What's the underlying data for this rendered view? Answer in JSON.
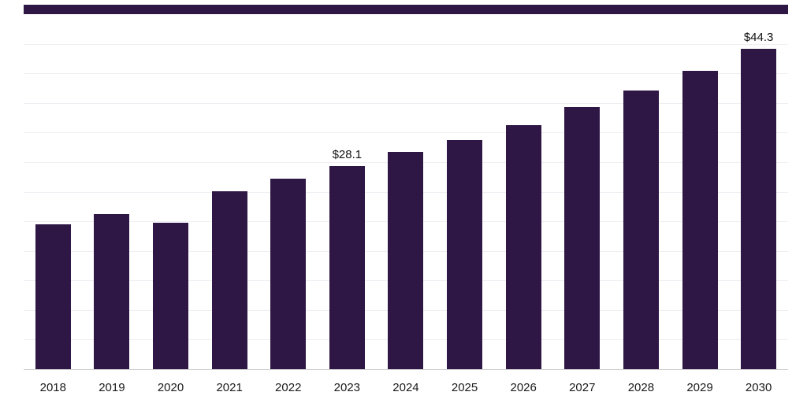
{
  "chart_data": {
    "type": "bar",
    "title": "",
    "xlabel": "",
    "ylabel": "",
    "categories": [
      "2018",
      "2019",
      "2020",
      "2021",
      "2022",
      "2023",
      "2024",
      "2025",
      "2026",
      "2027",
      "2028",
      "2029",
      "2030"
    ],
    "values": [
      20.0,
      21.5,
      20.2,
      24.6,
      26.3,
      28.1,
      30.0,
      31.7,
      33.8,
      36.2,
      38.5,
      41.3,
      44.3
    ],
    "annotations": [
      {
        "category": "2023",
        "text": "$28.1"
      },
      {
        "category": "2030",
        "text": "$44.3"
      }
    ],
    "currency_prefix": "$",
    "bar_color": "#2e1745",
    "axis_label_color": "#1a1a1a",
    "gridline_color": "#f0eef3",
    "axis_line_color": "#cfcfcf",
    "grid": true,
    "gridline_count": 11,
    "legend": false,
    "ylim": [
      0,
      49.1
    ]
  }
}
